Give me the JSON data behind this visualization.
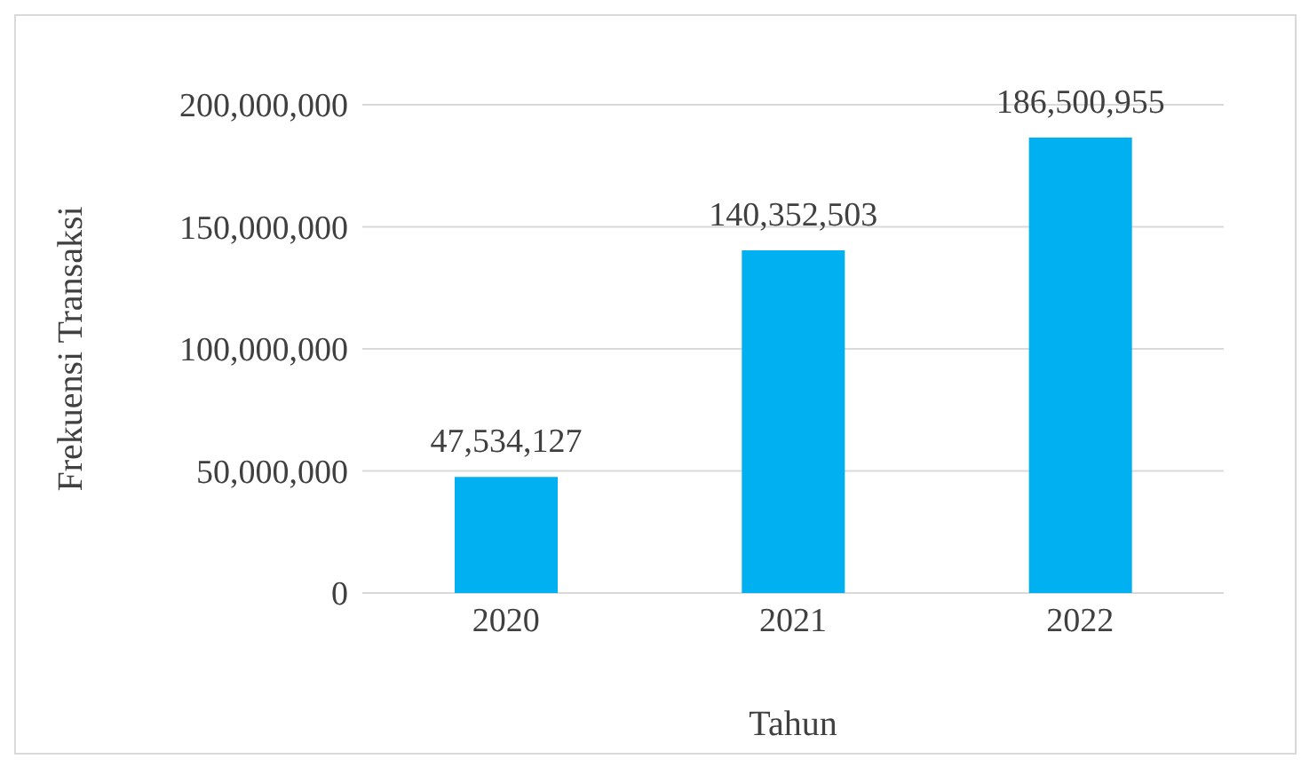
{
  "chart_data": {
    "type": "bar",
    "xlabel": "Tahun",
    "ylabel": "Frekuensi Transaksi",
    "categories": [
      "2020",
      "2021",
      "2022"
    ],
    "values": [
      47534127,
      140352503,
      186500955
    ],
    "value_labels": [
      "47,534,127",
      "140,352,503",
      "186,500,955"
    ],
    "color": "#00b0f0",
    "ylim": [
      0,
      200000000
    ],
    "yticks": [
      0,
      {
        "value": 50000000,
        "label": "50,000,000"
      },
      {
        "value": 100000000,
        "label": "100,000,000"
      },
      {
        "value": 150000000,
        "label": "150,000,000"
      },
      {
        "value": 200000000,
        "label": "200,000,000"
      }
    ],
    "grid": "y"
  }
}
